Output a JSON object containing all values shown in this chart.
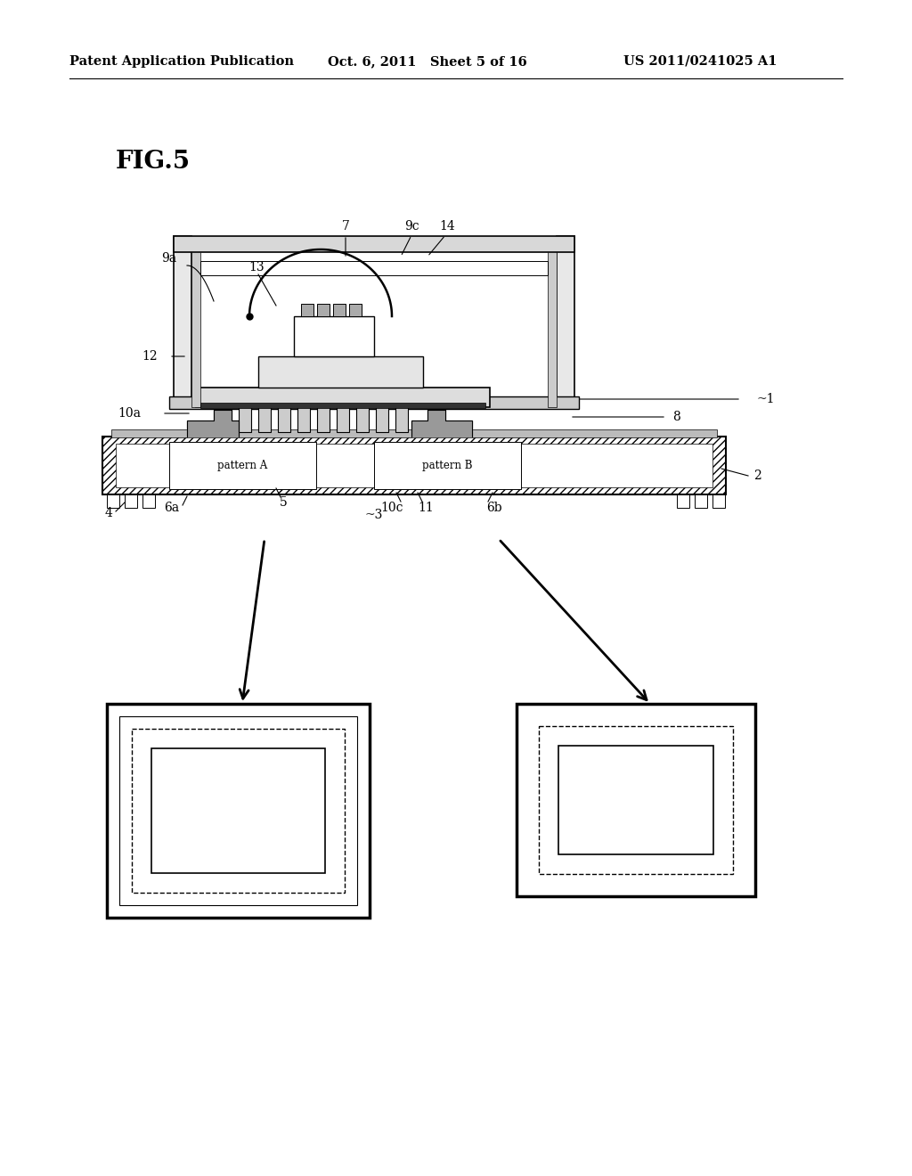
{
  "bg_color": "#ffffff",
  "header_left": "Patent Application Publication",
  "header_mid": "Oct. 6, 2011   Sheet 5 of 16",
  "header_right": "US 2011/0241025 A1",
  "fig_label": "FIG.5"
}
